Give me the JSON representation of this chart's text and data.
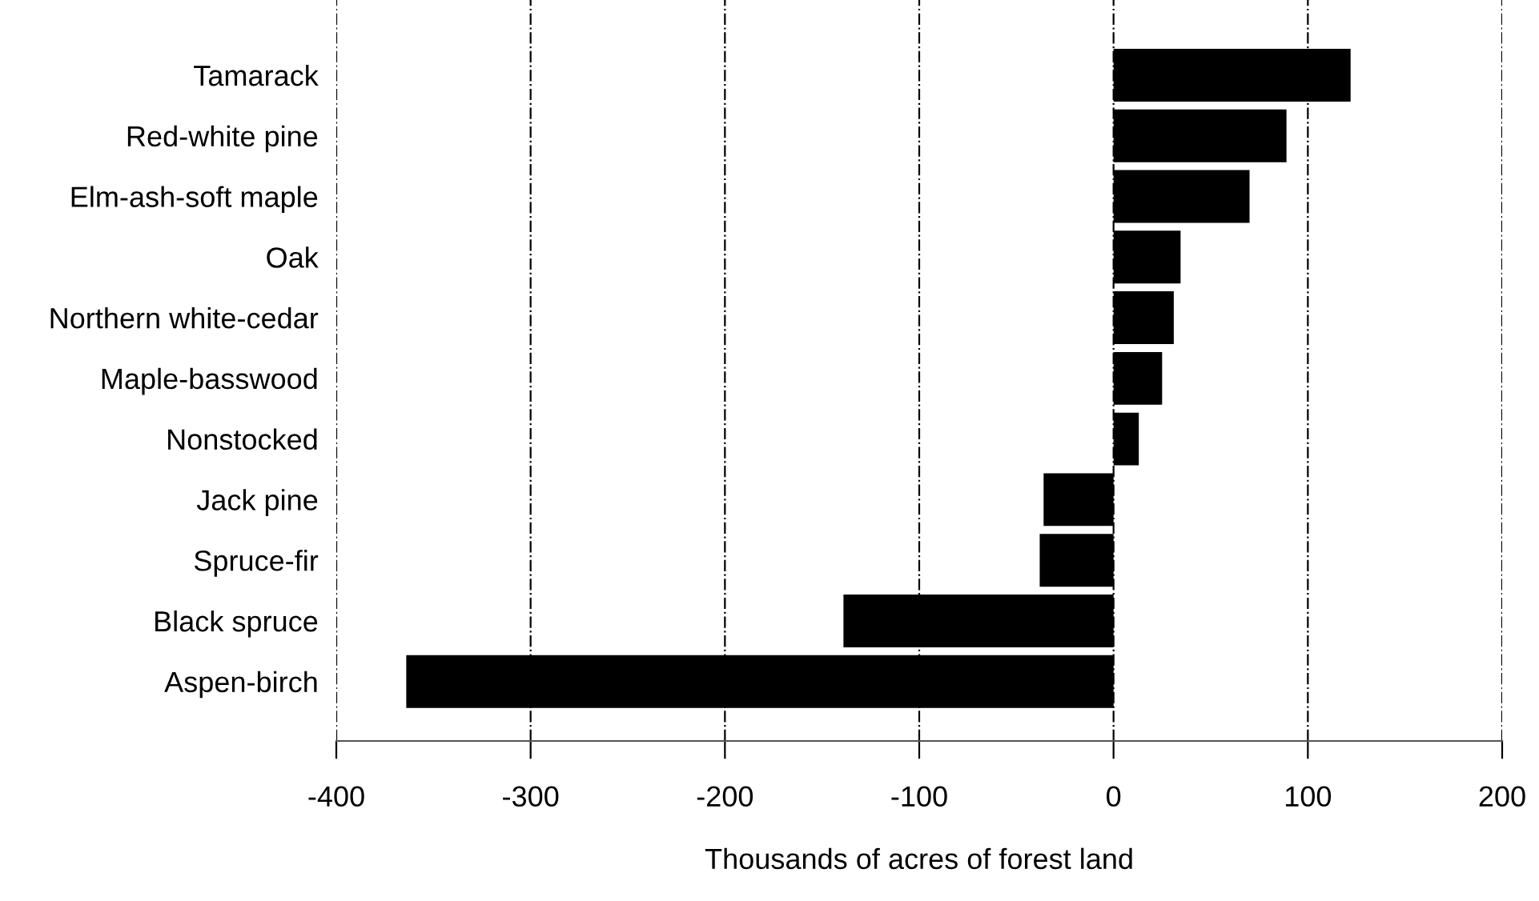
{
  "chart_data": {
    "type": "bar",
    "orientation": "horizontal",
    "xlabel": "Thousands of acres of forest land",
    "categories": [
      "Tamarack",
      "Red-white pine",
      "Elm-ash-soft maple",
      "Oak",
      "Northern white-cedar",
      "Maple-basswood",
      "Nonstocked",
      "Jack pine",
      "Spruce-fir",
      "Black spruce",
      "Aspen-birch"
    ],
    "values": [
      122,
      89,
      70,
      34.5,
      31,
      25,
      13,
      -36,
      -38,
      -139,
      -364
    ],
    "color": "#000000",
    "xlim": [
      -400,
      200
    ],
    "xticks": [
      -400,
      -300,
      -200,
      -100,
      0,
      100,
      200
    ],
    "grid": "x",
    "legend": false
  }
}
